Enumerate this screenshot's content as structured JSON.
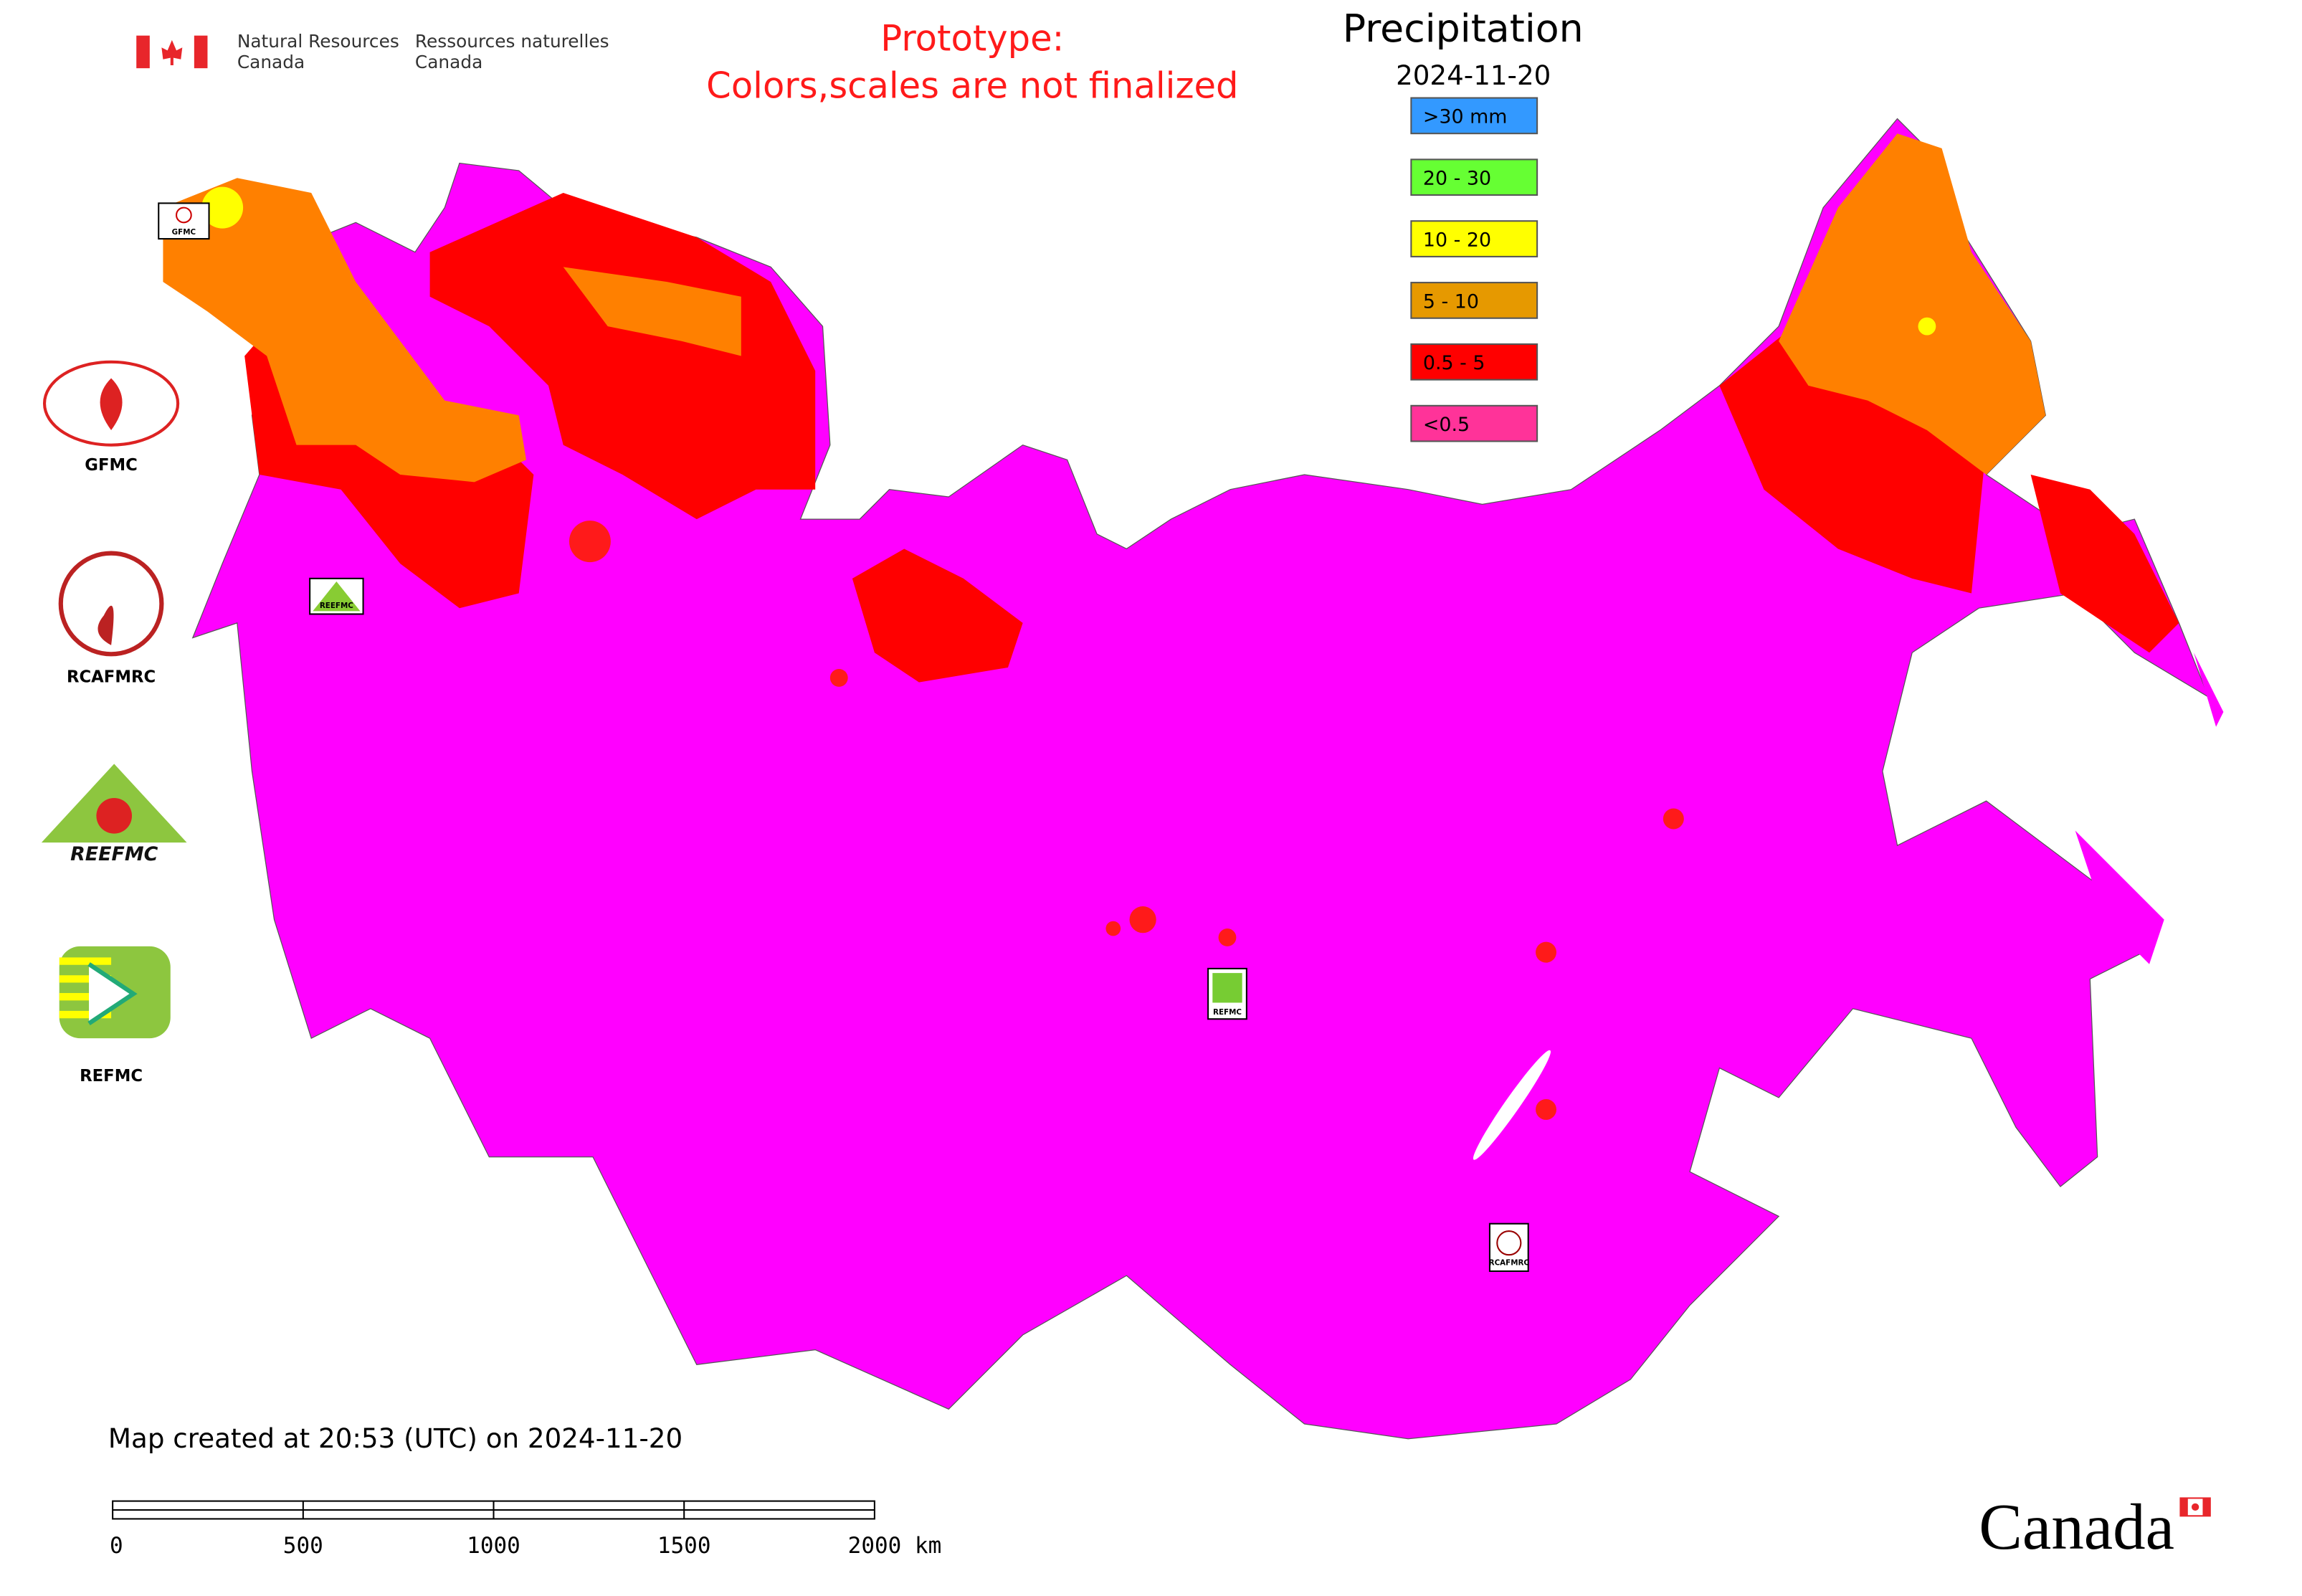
{
  "header": {
    "agency_en": [
      "Natural Resources",
      "Canada"
    ],
    "agency_fr": [
      "Ressources naturelles",
      "Canada"
    ],
    "notice": [
      "Prototype:",
      "Colors,scales are not finalized"
    ]
  },
  "legend": {
    "title": "Precipitation",
    "date": "2024-11-20",
    "items": [
      {
        "label": ">30 mm",
        "color": "#3399ff"
      },
      {
        "label": "20 - 30",
        "color": "#66ff33"
      },
      {
        "label": "10 - 20",
        "color": "#ffff00"
      },
      {
        "label": "5 - 10",
        "color": "#e69900"
      },
      {
        "label": "0.5 - 5",
        "color": "#ff0000"
      },
      {
        "label": "<0.5",
        "color": "#ff3399"
      }
    ]
  },
  "partners": [
    "GFMC",
    "RCAFMRC",
    "REEFMC",
    "REFMC"
  ],
  "map_markers": [
    "GFMC",
    "REEFMC",
    "REFMC",
    "RCAFMRC"
  ],
  "footer": {
    "created": "Map created at 20:53 (UTC) on 2024-11-20",
    "scale_labels": [
      "0",
      "500",
      "1000",
      "1500",
      "2000 km"
    ],
    "wordmark": "Canada"
  }
}
